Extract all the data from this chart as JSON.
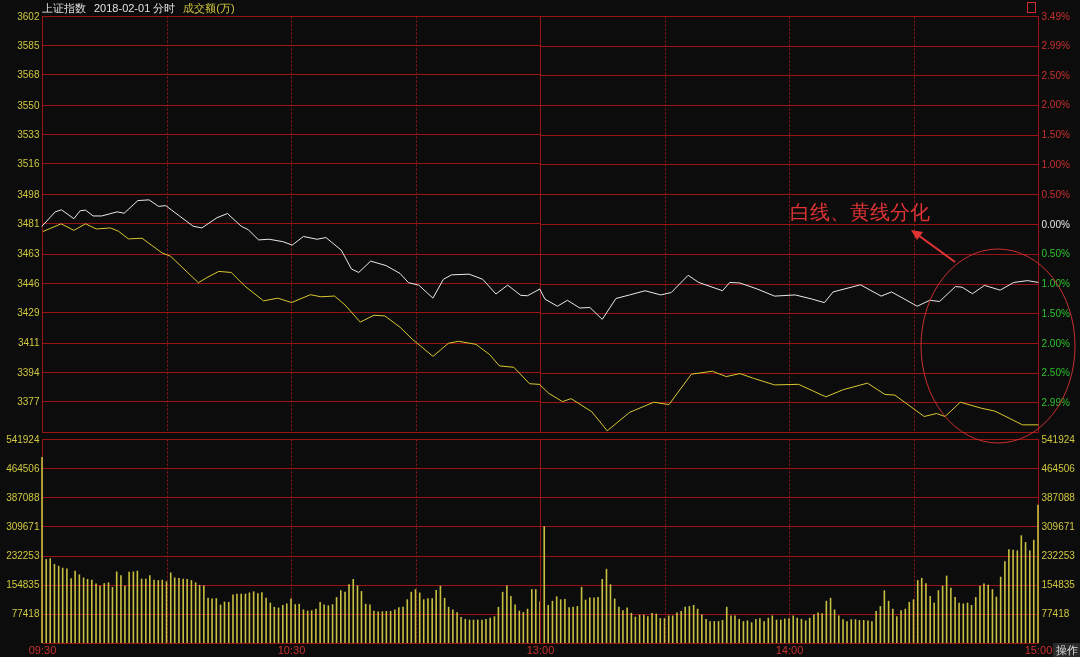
{
  "chart_data": [
    {
      "type": "line",
      "title": "上证指数",
      "subtitle": "2018-02-01 分时",
      "annotations": [
        "成交额(万)"
      ],
      "tick_labels": "y",
      "grid": true,
      "xlim": [
        9.5,
        11.5
      ],
      "xticks": [
        {
          "value": 9.5,
          "label": null
        },
        {
          "value": 10,
          "label": null
        },
        {
          "value": 10.5,
          "label": null
        },
        {
          "value": 11,
          "label": null
        }
      ],
      "ylim": [
        3359,
        3602
      ],
      "yticks": [
        3377,
        3394,
        3411,
        3429,
        3446,
        3463,
        3481,
        3498,
        3516,
        3533,
        3550,
        3568,
        3585,
        3602
      ],
      "series": [
        {
          "color": "#e8e8e8",
          "x": [
            9.5,
            9.553,
            9.578,
            9.628,
            9.653,
            9.675,
            9.705,
            9.74,
            9.802,
            9.83,
            9.885,
            9.93,
            9.968,
            9.997,
            10.052,
            10.107,
            10.142,
            10.203,
            10.245,
            10.3,
            10.328,
            10.37,
            10.412,
            10.467,
            10.505,
            10.55,
            10.605,
            10.64,
            10.702,
            10.743,
            10.772,
            10.82,
            10.882,
            10.938,
            10.972,
            11.013,
            11.07,
            11.112,
            11.145,
            11.215,
            11.27,
            11.323,
            11.37,
            11.423,
            11.45,
            11.5
          ],
          "values": [
            3479.2,
            3487.6,
            3488.8,
            3483.6,
            3488.2,
            3488.6,
            3485.2,
            3485.2,
            3487.6,
            3486.8,
            3494.2,
            3494.6,
            3490.8,
            3491.2,
            3485.2,
            3479.2,
            3478.2,
            3484.2,
            3486.6,
            3479.2,
            3477.2,
            3471.2,
            3471.6,
            3470.2,
            3468.2,
            3473.2,
            3471.6,
            3472.6,
            3465.2,
            3454.2,
            3452.2,
            3458.8,
            3456.2,
            3451.6,
            3446.2,
            3444.8,
            3437.2,
            3448.2,
            3450.8,
            3451.2,
            3448.2,
            3439.6,
            3444.8,
            3438.8,
            3438.6,
            3442.6
          ]
        },
        {
          "color": "#d8c830",
          "x": [
            9.505,
            9.577,
            9.628,
            9.675,
            9.718,
            9.775,
            9.808,
            9.847,
            9.902,
            9.982,
            10.017,
            10.128,
            10.162,
            10.21,
            10.26,
            10.315,
            10.39,
            10.447,
            10.502,
            10.578,
            10.62,
            10.675,
            10.717,
            10.778,
            10.833,
            10.877,
            10.938,
            10.987,
            11.07,
            11.132,
            11.173,
            11.243,
            11.298,
            11.337,
            11.395,
            11.458,
            11.5
          ],
          "values": [
            3476.2,
            3480.6,
            3476.8,
            3480.6,
            3477.6,
            3478.2,
            3476.2,
            3471.8,
            3472.2,
            3463.6,
            3461.6,
            3446.2,
            3449.2,
            3452.8,
            3452.2,
            3444.2,
            3435.6,
            3437.2,
            3434.6,
            3439.2,
            3438,
            3438.4,
            3433.2,
            3423.2,
            3427.2,
            3426.8,
            3420.2,
            3413.2,
            3403.2,
            3410.8,
            3412,
            3410.2,
            3404.2,
            3397.6,
            3396.8,
            3387.2,
            3386.8
          ]
        }
      ]
    },
    {
      "type": "line",
      "tick_labels": "y",
      "grid": true,
      "xlim": [
        13,
        15
      ],
      "xticks": [
        {
          "value": 13,
          "label": null
        },
        {
          "value": 13.5,
          "label": null
        },
        {
          "value": 14,
          "label": null
        },
        {
          "value": 14.5,
          "label": null
        },
        {
          "value": 15,
          "label": null
        }
      ],
      "ylim": [
        -3.49,
        3.49
      ],
      "yticks": [
        {
          "value": -2.99,
          "label": "2.99%"
        },
        {
          "value": -2.5,
          "label": "2.50%"
        },
        {
          "value": -2,
          "label": "2.00%"
        },
        {
          "value": -1.5,
          "label": "1.50%"
        },
        {
          "value": -1,
          "label": "1.00%"
        },
        {
          "value": -0.5,
          "label": "0.50%"
        },
        {
          "value": 0,
          "label": "0.00%"
        },
        {
          "value": 0.5,
          "label": "0.50%"
        },
        {
          "value": 1,
          "label": "1.00%"
        },
        {
          "value": 1.5,
          "label": "1.50%"
        },
        {
          "value": 2,
          "label": "2.00%"
        },
        {
          "value": 2.5,
          "label": "2.50%"
        },
        {
          "value": 2.99,
          "label": "2.99%"
        },
        {
          "value": 3.49,
          "label": "3.49%"
        }
      ],
      "annotations": [
        "白线、黄线分化"
      ],
      "series": [
        {
          "color": "#e8e8e8",
          "x": [
            13,
            13.02,
            13.07,
            13.11,
            13.16,
            13.2,
            13.25,
            13.305,
            13.36,
            13.422,
            13.485,
            13.527,
            13.595,
            13.637,
            13.733,
            13.762,
            13.803,
            13.872,
            13.942,
            14.025,
            14.093,
            14.142,
            14.177,
            14.287,
            14.37,
            14.412,
            14.515,
            14.565,
            14.605,
            14.668,
            14.695,
            14.737,
            14.785,
            14.848,
            14.903,
            14.958,
            15
          ],
          "values": [
            -1.1,
            -1.26,
            -1.38,
            -1.28,
            -1.41,
            -1.4,
            -1.6,
            -1.25,
            -1.19,
            -1.12,
            -1.19,
            -1.15,
            -0.86,
            -0.98,
            -1.12,
            -0.98,
            -0.99,
            -1.09,
            -1.21,
            -1.19,
            -1.26,
            -1.32,
            -1.14,
            -1.02,
            -1.21,
            -1.14,
            -1.38,
            -1.28,
            -1.3,
            -1.05,
            -1.06,
            -1.17,
            -1.03,
            -1.11,
            -0.98,
            -0.95,
            -0.98
          ]
        },
        {
          "color": "#d8c830",
          "x": [
            13,
            13.035,
            13.09,
            13.125,
            13.208,
            13.27,
            13.36,
            13.457,
            13.518,
            13.608,
            13.692,
            13.748,
            13.803,
            13.858,
            13.942,
            14.038,
            14.148,
            14.218,
            14.315,
            14.385,
            14.425,
            14.543,
            14.592,
            14.627,
            14.688,
            14.772,
            14.827,
            14.938,
            15
          ],
          "values": [
            -2.7,
            -2.84,
            -2.98,
            -2.93,
            -3.15,
            -3.47,
            -3.16,
            -2.99,
            -3.03,
            -2.52,
            -2.47,
            -2.56,
            -2.51,
            -2.59,
            -2.7,
            -2.69,
            -2.9,
            -2.78,
            -2.67,
            -2.86,
            -2.87,
            -3.23,
            -3.18,
            -3.23,
            -2.99,
            -3.09,
            -3.14,
            -3.37,
            -3.37
          ]
        }
      ]
    },
    {
      "type": "bar",
      "grid": true,
      "xlim": [
        9.5,
        11.5
      ],
      "xticks": [
        {
          "value": 9.5,
          "label": "09:30"
        },
        {
          "value": 10,
          "label": null
        },
        {
          "value": 10.5,
          "label": "10:30"
        },
        {
          "value": 11,
          "label": null
        }
      ],
      "ylim": [
        0,
        541924
      ],
      "yticks": [
        77418,
        154835,
        232253,
        309671,
        387088,
        464506,
        541924
      ],
      "x": [
        9.5,
        9.517,
        9.533,
        9.55,
        9.567,
        9.583,
        9.6,
        9.617,
        9.633,
        9.65,
        9.667,
        9.683,
        9.7,
        9.717,
        9.733,
        9.75,
        9.767,
        9.783,
        9.8,
        9.817,
        9.833,
        9.85,
        9.867,
        9.883,
        9.9,
        9.917,
        9.933,
        9.95,
        9.967,
        9.983,
        10,
        10.017,
        10.033,
        10.05,
        10.067,
        10.083,
        10.1,
        10.117,
        10.133,
        10.15,
        10.167,
        10.183,
        10.2,
        10.217,
        10.233,
        10.25,
        10.267,
        10.283,
        10.3,
        10.317,
        10.333,
        10.35,
        10.367,
        10.383,
        10.4,
        10.417,
        10.433,
        10.45,
        10.467,
        10.483,
        10.5,
        10.517,
        10.533,
        10.55,
        10.567,
        10.583,
        10.6,
        10.617,
        10.633,
        10.65,
        10.667,
        10.683,
        10.7,
        10.717,
        10.733,
        10.75,
        10.767,
        10.783,
        10.8,
        10.817,
        10.833,
        10.85,
        10.867,
        10.883,
        10.9,
        10.917,
        10.933,
        10.95,
        10.967,
        10.983,
        11,
        11.017,
        11.033,
        11.05,
        11.067,
        11.083,
        11.1,
        11.117,
        11.133,
        11.15,
        11.167,
        11.183,
        11.2,
        11.217,
        11.233,
        11.25,
        11.267,
        11.283,
        11.3,
        11.317,
        11.333,
        11.35,
        11.367,
        11.383,
        11.4,
        11.417,
        11.433,
        11.45,
        11.467,
        11.483,
        11.5
      ],
      "series": [
        {
          "color": "#c8c040",
          "values": [
            494000,
            223000,
            225000,
            210000,
            205000,
            200000,
            198000,
            172000,
            192000,
            182000,
            174000,
            170000,
            168000,
            158000,
            152000,
            159000,
            161000,
            149000,
            190000,
            180000,
            152000,
            189000,
            190000,
            192000,
            171000,
            171000,
            180000,
            168000,
            167000,
            168000,
            164000,
            187000,
            174000,
            173000,
            171000,
            170000,
            167000,
            161000,
            154000,
            153000,
            120000,
            118000,
            119000,
            102000,
            110000,
            109000,
            129000,
            131000,
            131000,
            131000,
            134000,
            137000,
            132000,
            135000,
            120000,
            107000,
            96000,
            94000,
            101000,
            105000,
            118000,
            103000,
            104000,
            89000,
            86000,
            87000,
            91000,
            109000,
            102000,
            100000,
            103000,
            122000,
            140000,
            136000,
            156000,
            170000,
            153000,
            138000,
            104000,
            102000,
            86000,
            84000,
            84000,
            85000,
            85000,
            89000,
            95000,
            96000,
            116000,
            136000,
            143000,
            134000,
            116000,
            119000,
            119000,
            141000,
            152000,
            120000,
            96000,
            89000,
            82000,
            69000,
            64000,
            62000,
            62000,
            62000,
            62000,
            64000,
            67000,
            71000,
            96000,
            136000,
            153000,
            125000,
            102000,
            86000,
            82000,
            91000,
            143000,
            143000,
            110000
          ]
        }
      ]
    },
    {
      "type": "bar",
      "grid": true,
      "xlim": [
        13,
        15
      ],
      "xticks": [
        {
          "value": 13,
          "label": "13:00"
        },
        {
          "value": 13.5,
          "label": null
        },
        {
          "value": 14,
          "label": "14:00"
        },
        {
          "value": 14.5,
          "label": null
        },
        {
          "value": 15,
          "label": "15:00"
        }
      ],
      "ylim": [
        0,
        541924
      ],
      "yticks": [
        77418,
        154835,
        232253,
        309671,
        387088,
        464506,
        541924
      ],
      "annotations": [
        "操作"
      ],
      "x": [
        13.017,
        13.033,
        13.05,
        13.067,
        13.083,
        13.1,
        13.117,
        13.133,
        13.15,
        13.167,
        13.183,
        13.2,
        13.217,
        13.233,
        13.25,
        13.267,
        13.283,
        13.3,
        13.317,
        13.333,
        13.35,
        13.367,
        13.383,
        13.4,
        13.417,
        13.433,
        13.45,
        13.467,
        13.483,
        13.5,
        13.517,
        13.533,
        13.55,
        13.567,
        13.583,
        13.6,
        13.617,
        13.633,
        13.65,
        13.667,
        13.683,
        13.7,
        13.717,
        13.733,
        13.75,
        13.767,
        13.783,
        13.8,
        13.817,
        13.833,
        13.85,
        13.867,
        13.883,
        13.9,
        13.917,
        13.933,
        13.95,
        13.967,
        13.983,
        14,
        14.017,
        14.033,
        14.05,
        14.067,
        14.083,
        14.1,
        14.117,
        14.133,
        14.15,
        14.167,
        14.183,
        14.2,
        14.217,
        14.233,
        14.25,
        14.267,
        14.283,
        14.3,
        14.317,
        14.333,
        14.35,
        14.367,
        14.383,
        14.4,
        14.417,
        14.433,
        14.45,
        14.467,
        14.483,
        14.5,
        14.517,
        14.533,
        14.55,
        14.567,
        14.583,
        14.6,
        14.617,
        14.633,
        14.65,
        14.667,
        14.683,
        14.7,
        14.717,
        14.733,
        14.75,
        14.767,
        14.783,
        14.8,
        14.817,
        14.833,
        14.85,
        14.867,
        14.883,
        14.9,
        14.917,
        14.933,
        14.95,
        14.967,
        14.983,
        15
      ],
      "series": [
        {
          "color": "#c8c040",
          "values": [
            310000,
            101000,
            112000,
            124000,
            116000,
            117000,
            95000,
            96000,
            98000,
            149000,
            115000,
            121000,
            121000,
            122000,
            170000,
            197000,
            156000,
            118000,
            96000,
            87000,
            94000,
            80000,
            70000,
            75000,
            75000,
            71000,
            80000,
            78000,
            66000,
            66000,
            73000,
            73000,
            81000,
            85000,
            96000,
            98000,
            101000,
            91000,
            76000,
            64000,
            58000,
            58000,
            58000,
            61000,
            96000,
            73000,
            73000,
            64000,
            58000,
            60000,
            55000,
            64000,
            66000,
            58000,
            67000,
            73000,
            62000,
            62000,
            65000,
            66000,
            73000,
            67000,
            64000,
            60000,
            67000,
            76000,
            81000,
            79000,
            112000,
            120000,
            89000,
            73000,
            63000,
            58000,
            63000,
            63000,
            61000,
            61000,
            60000,
            58000,
            85000,
            98000,
            140000,
            112000,
            91000,
            71000,
            87000,
            91000,
            109000,
            116000,
            167000,
            173000,
            159000,
            125000,
            107000,
            140000,
            152000,
            179000,
            147000,
            122000,
            107000,
            105000,
            107000,
            101000,
            122000,
            152000,
            158000,
            155000,
            143000,
            123000,
            176000,
            217000,
            249000,
            248000,
            246000,
            286000,
            268000,
            246000,
            274000,
            367000
          ]
        }
      ]
    }
  ]
}
